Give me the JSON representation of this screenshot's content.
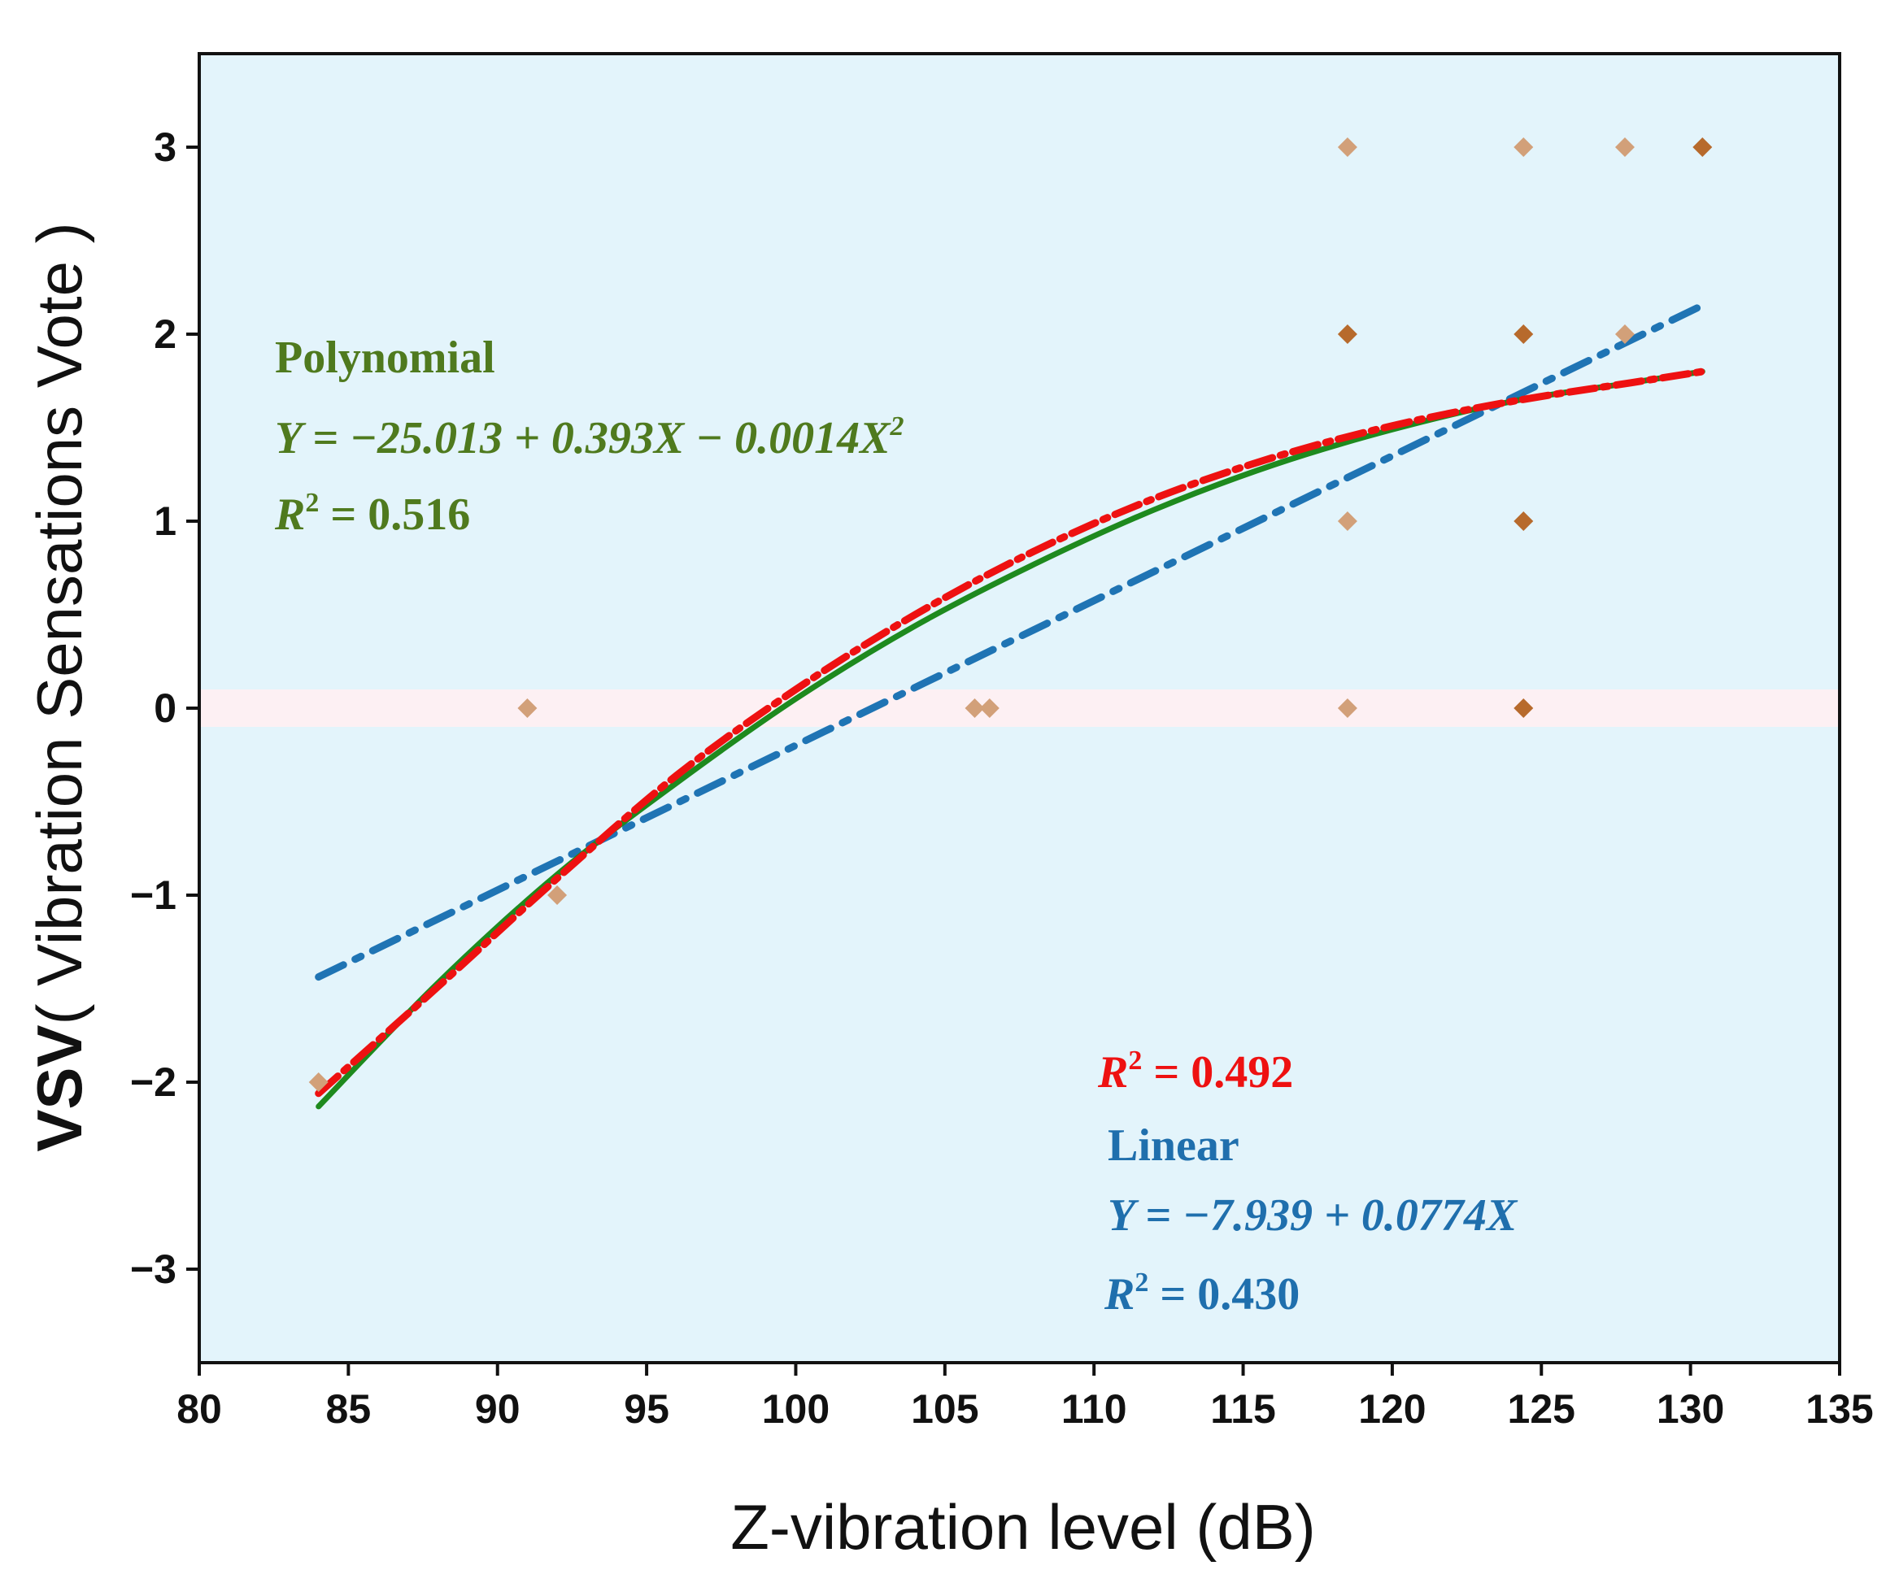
{
  "chart_data": {
    "type": "scatter",
    "xlabel": "Z-vibration level (dB)",
    "ylabel_bold": "VSV",
    "ylabel_rest": "( Vibration Sensations Vote )",
    "xlim": [
      80,
      135
    ],
    "ylim": [
      -3.5,
      3.5
    ],
    "x_ticks": [
      80,
      85,
      90,
      95,
      100,
      105,
      110,
      115,
      120,
      125,
      130,
      135
    ],
    "y_ticks": [
      3,
      2,
      1,
      0,
      -1,
      -2,
      -3
    ],
    "y_tick_labels": [
      "3",
      "2",
      "1",
      "0",
      "−1",
      "−2",
      "−3"
    ],
    "zero_band": {
      "y_min": -0.1,
      "y_max": 0.1,
      "color": "#fdf0f3"
    },
    "plot_background": "#e3f4fb",
    "points": [
      {
        "x": 84.0,
        "y": -2,
        "shade": "light"
      },
      {
        "x": 91.0,
        "y": 0,
        "shade": "light"
      },
      {
        "x": 92.0,
        "y": -1,
        "shade": "light"
      },
      {
        "x": 106.0,
        "y": 0,
        "shade": "light"
      },
      {
        "x": 106.5,
        "y": 0,
        "shade": "light"
      },
      {
        "x": 118.5,
        "y": 0,
        "shade": "light"
      },
      {
        "x": 118.5,
        "y": 1,
        "shade": "light"
      },
      {
        "x": 118.5,
        "y": 2,
        "shade": "dark"
      },
      {
        "x": 118.5,
        "y": 3,
        "shade": "light"
      },
      {
        "x": 124.4,
        "y": 0,
        "shade": "dark"
      },
      {
        "x": 124.4,
        "y": 1,
        "shade": "dark"
      },
      {
        "x": 124.4,
        "y": 2,
        "shade": "dark"
      },
      {
        "x": 124.4,
        "y": 3,
        "shade": "light"
      },
      {
        "x": 127.8,
        "y": 2,
        "shade": "light"
      },
      {
        "x": 127.8,
        "y": 3,
        "shade": "light"
      },
      {
        "x": 130.4,
        "y": 3,
        "shade": "dark"
      }
    ],
    "point_colors": {
      "light": "#d2a079",
      "dark": "#b76a2c"
    },
    "curves": [
      {
        "name": "Linear",
        "kind": "linear",
        "intercept": -7.939,
        "slope": 0.0774,
        "x_range": [
          84,
          130.4
        ],
        "color": "#1f74b4",
        "dash": "34 16 8 16",
        "width": 9
      },
      {
        "name": "Polynomial",
        "kind": "poly",
        "points": [
          [
            84,
            -2.13
          ],
          [
            88,
            -1.47
          ],
          [
            92,
            -0.89
          ],
          [
            96,
            -0.4
          ],
          [
            100,
            0.05
          ],
          [
            104,
            0.44
          ],
          [
            108,
            0.77
          ],
          [
            112,
            1.06
          ],
          [
            116,
            1.3
          ],
          [
            120,
            1.49
          ],
          [
            124,
            1.64
          ],
          [
            128,
            1.74
          ],
          [
            130.4,
            1.8
          ]
        ],
        "color": "#1e8a1e",
        "dash": "",
        "width": 7
      },
      {
        "name": "R2 0.492 fit",
        "kind": "poly",
        "points": [
          [
            84,
            -2.06
          ],
          [
            88,
            -1.49
          ],
          [
            92,
            -0.91
          ],
          [
            96,
            -0.36
          ],
          [
            100,
            0.1
          ],
          [
            104,
            0.5
          ],
          [
            108,
            0.84
          ],
          [
            112,
            1.12
          ],
          [
            116,
            1.34
          ],
          [
            120,
            1.51
          ],
          [
            124,
            1.64
          ],
          [
            128,
            1.74
          ],
          [
            130.4,
            1.8
          ]
        ],
        "color": "#ee1111",
        "dash": "32 10 6 10",
        "width": 9
      }
    ],
    "annotations": {
      "polynomial_title": "Polynomial",
      "polynomial_eq_main": "Y = −25.013 + 0.393X − 0.0014X",
      "polynomial_eq_sup": "2",
      "polynomial_r2_main": "R",
      "polynomial_r2_sup": "2",
      "polynomial_r2_value": " = 0.516",
      "red_r2_main": "R",
      "red_r2_sup": "2",
      "red_r2_value": " = 0.492",
      "linear_title": "Linear",
      "linear_eq": "Y = −7.939 + 0.0774X",
      "linear_r2_main": "R",
      "linear_r2_sup": "2",
      "linear_r2_value": " = 0.430"
    },
    "annotation_colors": {
      "polynomial": "#4f7a1e",
      "red": "#ee1111",
      "linear": "#1f6fad"
    }
  }
}
